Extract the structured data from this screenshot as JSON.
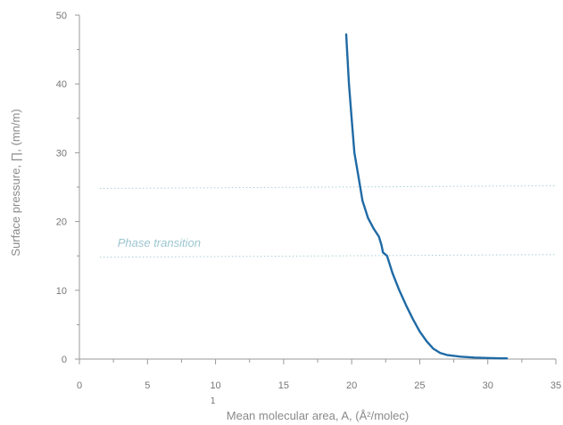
{
  "chart_data": {
    "type": "line",
    "xlabel": "Mean molecular area, A, (Å²/molec)",
    "ylabel": "Surface pressure, ∏, (mn/m)",
    "xlim": [
      0,
      35
    ],
    "ylim": [
      0,
      50
    ],
    "x_ticks": [
      0,
      5,
      10,
      15,
      20,
      25,
      30,
      35
    ],
    "y_ticks": [
      0,
      10,
      20,
      30,
      40,
      50
    ],
    "x_tick_labels": [
      "0",
      "5",
      "10",
      "15",
      "20",
      "25",
      "30",
      "35"
    ],
    "y_tick_labels": [
      "0",
      "10",
      "20",
      "30",
      "40",
      "50"
    ],
    "grid": false,
    "series": [
      {
        "color": "#1f6aa5",
        "x": [
          19.6,
          19.8,
          20.0,
          20.2,
          20.5,
          20.8,
          21.2,
          21.6,
          22.0,
          22.2,
          22.3,
          22.6,
          23.0,
          23.5,
          24.0,
          24.5,
          25.0,
          25.5,
          26.0,
          26.5,
          27.0,
          28.0,
          29.0,
          30.0,
          31.0,
          31.4
        ],
        "y": [
          47.2,
          40.0,
          35.0,
          30.0,
          26.5,
          23.0,
          20.5,
          19.0,
          17.8,
          16.5,
          15.5,
          15.0,
          12.5,
          10.0,
          7.8,
          5.8,
          4.0,
          2.6,
          1.5,
          0.9,
          0.6,
          0.35,
          0.22,
          0.15,
          0.1,
          0.1
        ]
      }
    ],
    "reference_lines": [
      {
        "y": 25.0,
        "color": "#a9cdd6"
      },
      {
        "y": 15.0,
        "color": "#a9cdd6"
      }
    ],
    "annotations": [
      {
        "text": "Phase transition",
        "x": 2.8,
        "y": 16.3,
        "color": "#9cc6d0"
      }
    ],
    "stray_text": {
      "text": "1",
      "x": 9.8
    }
  }
}
